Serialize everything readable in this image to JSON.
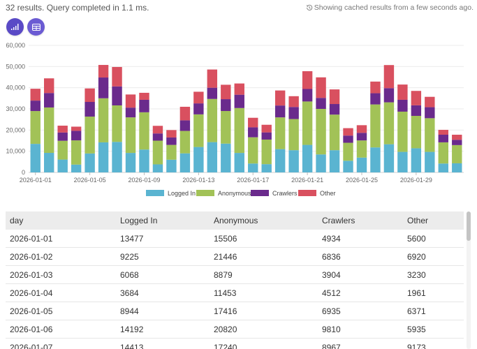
{
  "summary": "32 results. Query completed in 1.1 ms.",
  "cache_note": "Showing cached results from a few seconds ago.",
  "icons": {
    "chart_button": "bar-chart-icon",
    "table_button": "table-icon",
    "cache": "history-icon"
  },
  "colors": {
    "accent": "#6b5bd3"
  },
  "table": {
    "headers": [
      "day",
      "Logged In",
      "Anonymous",
      "Crawlers",
      "Other"
    ],
    "rows": [
      [
        "2026-01-01",
        "13477",
        "15506",
        "4934",
        "5600"
      ],
      [
        "2026-01-02",
        "9225",
        "21446",
        "6836",
        "6920"
      ],
      [
        "2026-01-03",
        "6068",
        "8879",
        "3904",
        "3230"
      ],
      [
        "2026-01-04",
        "3684",
        "11453",
        "4512",
        "1961"
      ],
      [
        "2026-01-05",
        "8944",
        "17416",
        "6935",
        "6371"
      ],
      [
        "2026-01-06",
        "14192",
        "20820",
        "9810",
        "5935"
      ],
      [
        "2026-01-07",
        "14413",
        "17240",
        "8967",
        "9173"
      ]
    ]
  },
  "chart_data": {
    "type": "bar",
    "stacked": true,
    "categories": [
      "2026-01-01",
      "2026-01-02",
      "2026-01-03",
      "2026-01-04",
      "2026-01-05",
      "2026-01-06",
      "2026-01-07",
      "2026-01-08",
      "2026-01-09",
      "2026-01-10",
      "2026-01-11",
      "2026-01-12",
      "2026-01-13",
      "2026-01-14",
      "2026-01-15",
      "2026-01-16",
      "2026-01-17",
      "2026-01-18",
      "2026-01-19",
      "2026-01-20",
      "2026-01-21",
      "2026-01-22",
      "2026-01-23",
      "2026-01-24",
      "2026-01-25",
      "2026-01-26",
      "2026-01-27",
      "2026-01-28",
      "2026-01-29",
      "2026-01-30",
      "2026-01-31",
      "2026-02-01"
    ],
    "x_tick_labels": [
      "2026-01-01",
      "2026-01-05",
      "2026-01-09",
      "2026-01-13",
      "2026-01-17",
      "2026-01-21",
      "2026-01-25",
      "2026-01-29"
    ],
    "y_ticks": [
      "0",
      "10,000",
      "20,000",
      "30,000",
      "40,000",
      "50,000",
      "60,000"
    ],
    "ylim": [
      0,
      60000
    ],
    "grid": true,
    "legend_position": "bottom",
    "series": [
      {
        "name": "Logged In",
        "color": "#5ab4d1",
        "values": [
          13477,
          9225,
          6068,
          3684,
          8944,
          14192,
          14413,
          9200,
          10800,
          3800,
          6000,
          9000,
          12000,
          14300,
          13600,
          9200,
          4200,
          3900,
          11000,
          10500,
          13000,
          8500,
          10500,
          5500,
          7000,
          11800,
          13300,
          9700,
          11400,
          9700,
          4200,
          4300
        ]
      },
      {
        "name": "Anonymous",
        "color": "#a2c257",
        "values": [
          15506,
          21446,
          8879,
          11453,
          17416,
          20820,
          17240,
          16800,
          17600,
          11200,
          7000,
          10600,
          15400,
          20400,
          15400,
          21200,
          12400,
          11600,
          15000,
          14700,
          20500,
          21500,
          16800,
          8500,
          8100,
          20300,
          19800,
          19000,
          15300,
          15900,
          10000,
          8600
        ]
      },
      {
        "name": "Crawlers",
        "color": "#6a2a8c",
        "values": [
          4934,
          6836,
          3904,
          4512,
          6935,
          9810,
          8967,
          4600,
          5900,
          3400,
          3500,
          5000,
          5200,
          5300,
          5600,
          6300,
          4700,
          3400,
          5600,
          5700,
          5900,
          5200,
          5000,
          3400,
          3600,
          5300,
          6700,
          5600,
          5000,
          5200,
          3600,
          2500
        ]
      },
      {
        "name": "Other",
        "color": "#d9505f",
        "values": [
          5600,
          6920,
          3230,
          1961,
          6371,
          5935,
          9173,
          6200,
          3300,
          3600,
          3500,
          6400,
          5500,
          8600,
          6800,
          5300,
          4500,
          3600,
          7100,
          5100,
          8400,
          9700,
          6900,
          3500,
          3600,
          5500,
          10900,
          7200,
          6800,
          4900,
          2300,
          2400
        ]
      }
    ]
  }
}
